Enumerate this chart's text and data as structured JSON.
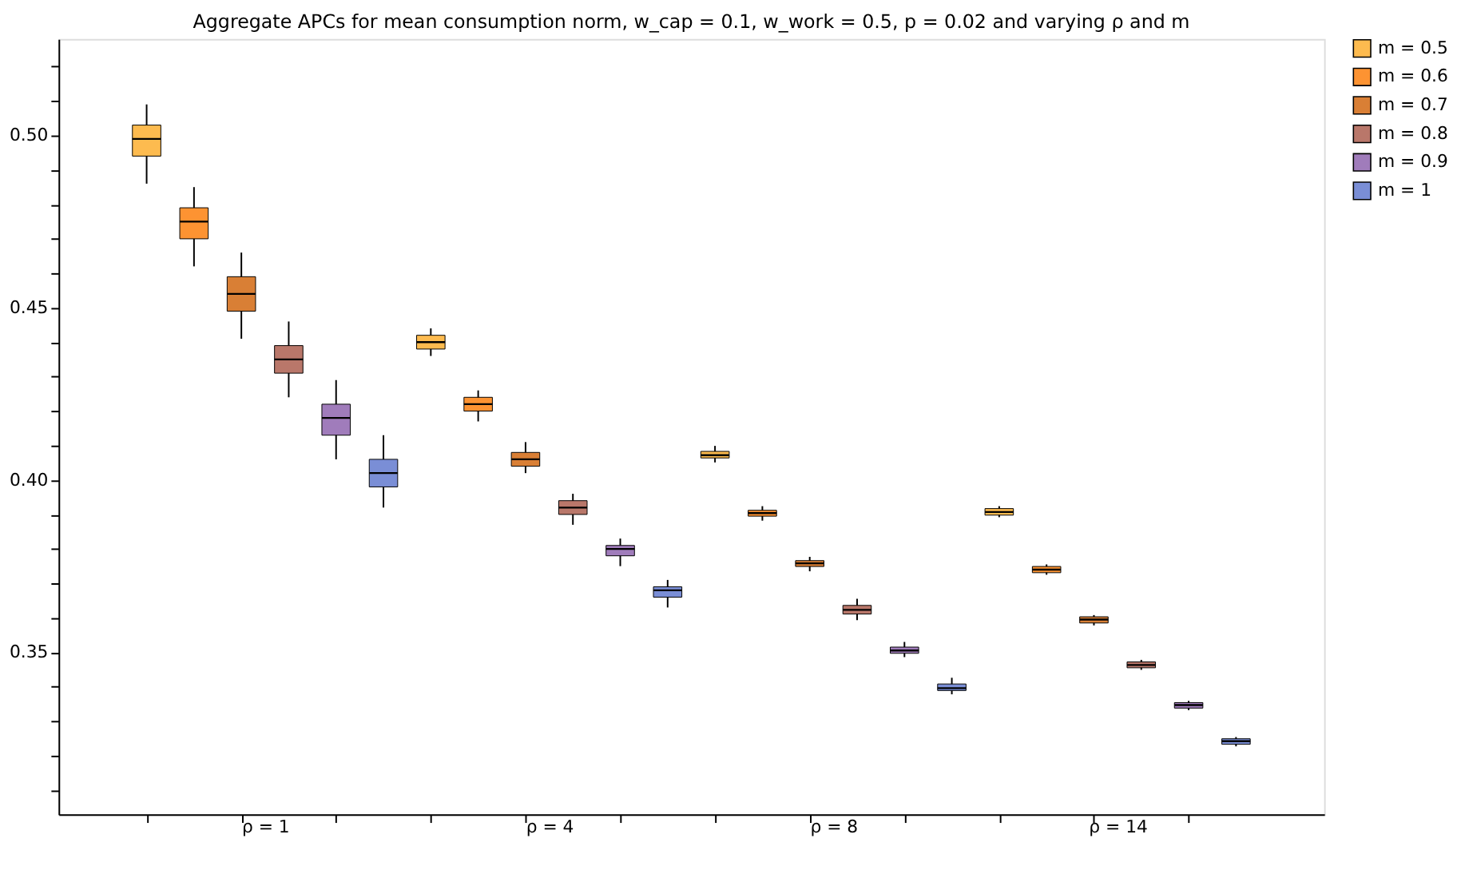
{
  "chart_data": {
    "type": "box",
    "title": "Aggregate APCs for mean consumption norm, w_cap = 0.1, w_work = 0.5,  p = 0.02 and varying ρ and m",
    "categories": [
      "ρ = 1",
      "ρ = 4",
      "ρ = 8",
      "ρ = 14"
    ],
    "ylim": [
      0.303,
      0.528
    ],
    "yticks": [
      {
        "value": 0.31,
        "label": null
      },
      {
        "value": 0.32,
        "label": null
      },
      {
        "value": 0.33,
        "label": null
      },
      {
        "value": 0.34,
        "label": null
      },
      {
        "value": 0.35,
        "label": "0.35"
      },
      {
        "value": 0.36,
        "label": null
      },
      {
        "value": 0.37,
        "label": null
      },
      {
        "value": 0.38,
        "label": null
      },
      {
        "value": 0.39,
        "label": null
      },
      {
        "value": 0.4,
        "label": "0.40"
      },
      {
        "value": 0.41,
        "label": null
      },
      {
        "value": 0.42,
        "label": null
      },
      {
        "value": 0.43,
        "label": null
      },
      {
        "value": 0.44,
        "label": null
      },
      {
        "value": 0.45,
        "label": "0.45"
      },
      {
        "value": 0.46,
        "label": null
      },
      {
        "value": 0.47,
        "label": null
      },
      {
        "value": 0.48,
        "label": null
      },
      {
        "value": 0.49,
        "label": null
      },
      {
        "value": 0.5,
        "label": "0.50"
      },
      {
        "value": 0.51,
        "label": null
      },
      {
        "value": 0.52,
        "label": null
      }
    ],
    "legend": "right",
    "series": [
      {
        "name": "m = 0.5",
        "color": "#fdbb4f",
        "boxes": [
          {
            "low": 0.486,
            "q1": 0.494,
            "median": 0.499,
            "q3": 0.503,
            "high": 0.509
          },
          {
            "low": 0.436,
            "q1": 0.438,
            "median": 0.44,
            "q3": 0.442,
            "high": 0.444
          },
          {
            "low": 0.4051,
            "q1": 0.4064,
            "median": 0.4072,
            "q3": 0.4083,
            "high": 0.4099
          },
          {
            "low": 0.3892,
            "q1": 0.3898,
            "median": 0.3907,
            "q3": 0.3917,
            "high": 0.3924
          }
        ]
      },
      {
        "name": "m = 0.6",
        "color": "#fd9332",
        "boxes": [
          {
            "low": 0.462,
            "q1": 0.47,
            "median": 0.475,
            "q3": 0.479,
            "high": 0.485
          },
          {
            "low": 0.417,
            "q1": 0.42,
            "median": 0.422,
            "q3": 0.424,
            "high": 0.426
          },
          {
            "low": 0.3882,
            "q1": 0.3895,
            "median": 0.3904,
            "q3": 0.3912,
            "high": 0.3924
          },
          {
            "low": 0.3725,
            "q1": 0.3731,
            "median": 0.374,
            "q3": 0.3749,
            "high": 0.3755
          }
        ]
      },
      {
        "name": "m = 0.7",
        "color": "#d97f35",
        "boxes": [
          {
            "low": 0.441,
            "q1": 0.449,
            "median": 0.454,
            "q3": 0.459,
            "high": 0.466
          },
          {
            "low": 0.402,
            "q1": 0.404,
            "median": 0.406,
            "q3": 0.408,
            "high": 0.411
          },
          {
            "low": 0.3735,
            "q1": 0.3749,
            "median": 0.3758,
            "q3": 0.3766,
            "high": 0.3777
          },
          {
            "low": 0.3578,
            "q1": 0.3585,
            "median": 0.3595,
            "q3": 0.3603,
            "high": 0.3608
          }
        ]
      },
      {
        "name": "m = 0.8",
        "color": "#b9776a",
        "boxes": [
          {
            "low": 0.424,
            "q1": 0.431,
            "median": 0.435,
            "q3": 0.439,
            "high": 0.446
          },
          {
            "low": 0.387,
            "q1": 0.39,
            "median": 0.392,
            "q3": 0.394,
            "high": 0.396
          },
          {
            "low": 0.3593,
            "q1": 0.3611,
            "median": 0.3623,
            "q3": 0.3636,
            "high": 0.3655
          },
          {
            "low": 0.3449,
            "q1": 0.3455,
            "median": 0.3463,
            "q3": 0.3472,
            "high": 0.3478
          }
        ]
      },
      {
        "name": "m = 0.9",
        "color": "#a07cbb",
        "boxes": [
          {
            "low": 0.406,
            "q1": 0.413,
            "median": 0.418,
            "q3": 0.422,
            "high": 0.429
          },
          {
            "low": 0.375,
            "q1": 0.378,
            "median": 0.38,
            "q3": 0.381,
            "high": 0.383
          },
          {
            "low": 0.3486,
            "q1": 0.3497,
            "median": 0.3505,
            "q3": 0.3515,
            "high": 0.353
          },
          {
            "low": 0.3332,
            "q1": 0.3338,
            "median": 0.3347,
            "q3": 0.3354,
            "high": 0.3359
          }
        ]
      },
      {
        "name": "m = 1",
        "color": "#7a8ed6",
        "boxes": [
          {
            "low": 0.392,
            "q1": 0.398,
            "median": 0.402,
            "q3": 0.406,
            "high": 0.413
          },
          {
            "low": 0.363,
            "q1": 0.366,
            "median": 0.368,
            "q3": 0.369,
            "high": 0.371
          },
          {
            "low": 0.3378,
            "q1": 0.3389,
            "median": 0.3396,
            "q3": 0.3408,
            "high": 0.3426
          },
          {
            "low": 0.3227,
            "q1": 0.3233,
            "median": 0.3242,
            "q3": 0.3249,
            "high": 0.3254
          }
        ]
      }
    ]
  }
}
